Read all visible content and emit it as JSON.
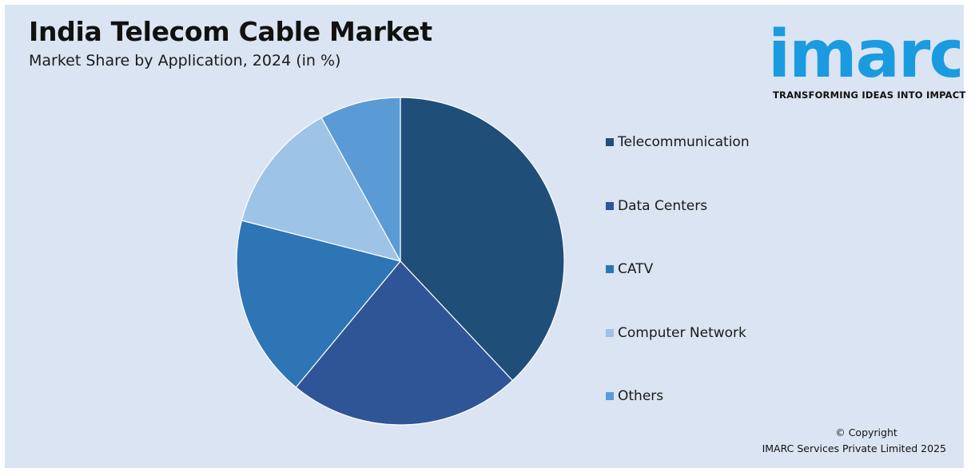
{
  "header": {
    "title": "India Telecom Cable Market",
    "subtitle": "Market Share by Application, 2024 (in %)"
  },
  "logo": {
    "brand": "imarc",
    "tagline": "TRANSFORMING IDEAS INTO IMPACT",
    "color": "#1a9be0"
  },
  "chart_data": {
    "type": "pie",
    "title": "India Telecom Cable Market",
    "subtitle": "Market Share by Application, 2024 (in %)",
    "legend_position": "right",
    "categories": [
      "Telecommunication",
      "Data Centers",
      "CATV",
      "Computer Network",
      "Others"
    ],
    "values": [
      38,
      23,
      18,
      13,
      8
    ],
    "colors": [
      "#1f4e79",
      "#2f5597",
      "#2e75b6",
      "#9dc3e6",
      "#5b9bd5"
    ]
  },
  "footer": {
    "copyright_line1": "© Copyright",
    "copyright_line2": "IMARC Services Private Limited 2025"
  }
}
